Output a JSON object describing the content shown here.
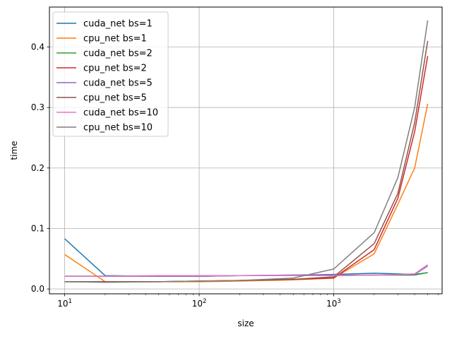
{
  "chart_data": {
    "type": "line",
    "xscale": "log",
    "xlabel": "size",
    "ylabel": "time",
    "xlim": [
      7.7,
      6400
    ],
    "ylim": [
      -0.008,
      0.466
    ],
    "grid": true,
    "legend_position": "top-left",
    "x": [
      10,
      20,
      50,
      100,
      200,
      500,
      1000,
      2000,
      3000,
      4000,
      5000
    ],
    "x_ticks": [
      {
        "value": 10,
        "base": "10",
        "exp": "1"
      },
      {
        "value": 100,
        "base": "10",
        "exp": "2"
      },
      {
        "value": 1000,
        "base": "10",
        "exp": "3"
      }
    ],
    "y_ticks": [
      {
        "value": 0.0,
        "label": "0.0"
      },
      {
        "value": 0.1,
        "label": "0.1"
      },
      {
        "value": 0.2,
        "label": "0.2"
      },
      {
        "value": 0.3,
        "label": "0.3"
      },
      {
        "value": 0.4,
        "label": "0.4"
      }
    ],
    "series": [
      {
        "name": "cuda_net bs=1",
        "color": "#1f77b4",
        "values": [
          0.083,
          0.022,
          0.021,
          0.021,
          0.022,
          0.023,
          0.024,
          0.026,
          0.025,
          0.024,
          0.027
        ]
      },
      {
        "name": "cpu_net bs=1",
        "color": "#ff7f0e",
        "values": [
          0.057,
          0.012,
          0.012,
          0.012,
          0.013,
          0.015,
          0.018,
          0.058,
          0.14,
          0.2,
          0.306
        ]
      },
      {
        "name": "cuda_net bs=2",
        "color": "#2ca02c",
        "values": [
          0.021,
          0.021,
          0.021,
          0.021,
          0.022,
          0.022,
          0.022,
          0.023,
          0.023,
          0.023,
          0.027
        ]
      },
      {
        "name": "cpu_net bs=2",
        "color": "#d62728",
        "values": [
          0.012,
          0.012,
          0.012,
          0.013,
          0.014,
          0.016,
          0.018,
          0.065,
          0.15,
          0.26,
          0.385
        ]
      },
      {
        "name": "cuda_net bs=5",
        "color": "#9467bd",
        "values": [
          0.021,
          0.021,
          0.021,
          0.021,
          0.022,
          0.023,
          0.023,
          0.023,
          0.024,
          0.024,
          0.038
        ]
      },
      {
        "name": "cpu_net bs=5",
        "color": "#8c564b",
        "values": [
          0.012,
          0.012,
          0.012,
          0.013,
          0.014,
          0.016,
          0.02,
          0.075,
          0.158,
          0.275,
          0.41
        ]
      },
      {
        "name": "cuda_net bs=10",
        "color": "#e377c2",
        "values": [
          0.021,
          0.021,
          0.022,
          0.022,
          0.022,
          0.022,
          0.022,
          0.023,
          0.024,
          0.025,
          0.04
        ]
      },
      {
        "name": "cpu_net bs=10",
        "color": "#7f7f7f",
        "values": [
          0.012,
          0.011,
          0.012,
          0.013,
          0.014,
          0.018,
          0.033,
          0.093,
          0.184,
          0.3,
          0.444
        ]
      }
    ]
  }
}
